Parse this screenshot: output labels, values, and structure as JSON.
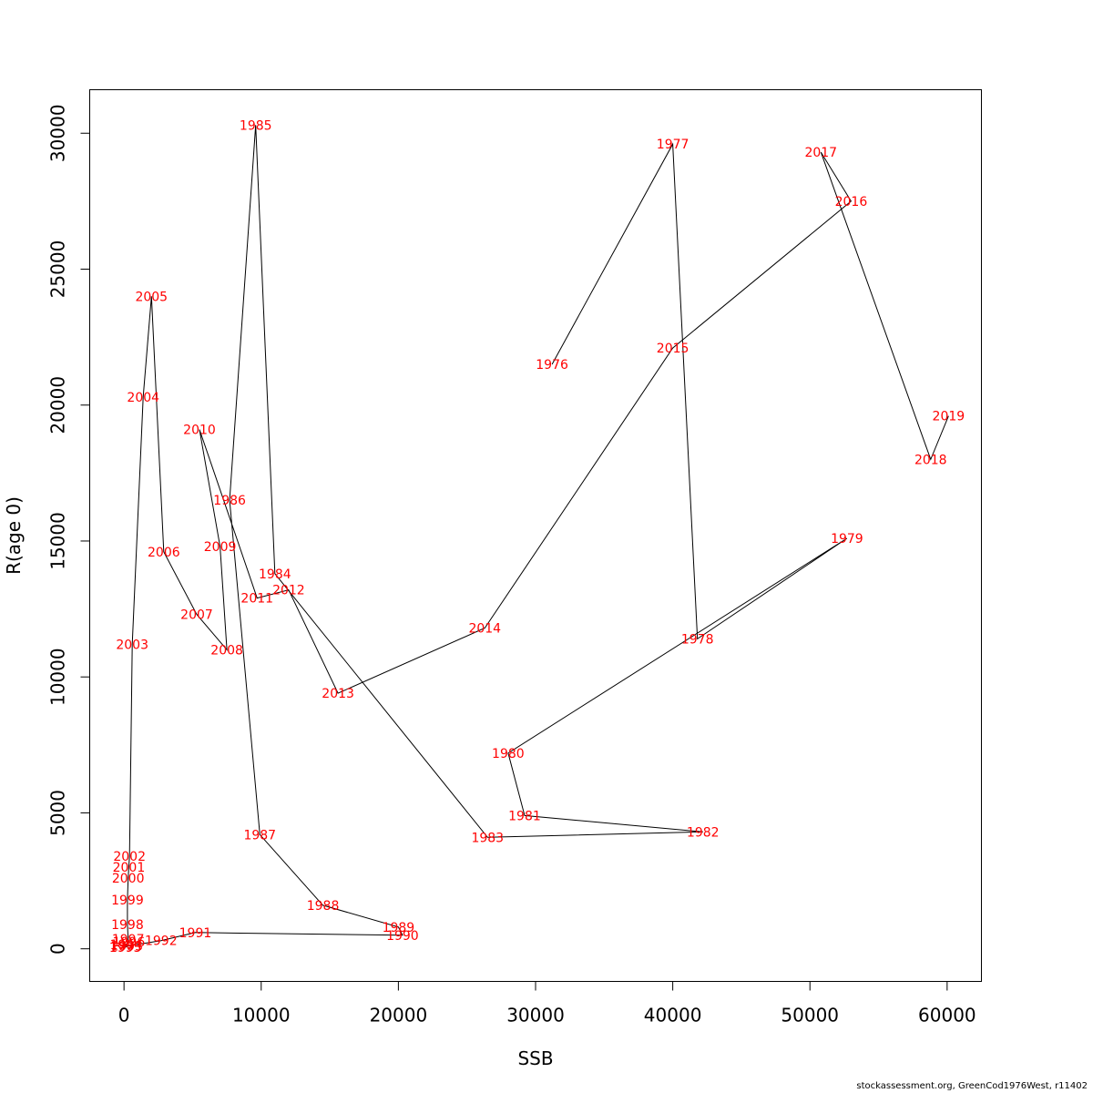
{
  "chart_data": {
    "type": "line",
    "title": "",
    "xlabel": "SSB",
    "ylabel": "R(age 0)",
    "xlim": [
      -2500,
      62500
    ],
    "ylim": [
      -1200,
      31600
    ],
    "xticks": [
      0,
      10000,
      20000,
      30000,
      40000,
      50000,
      60000
    ],
    "xtick_labels": [
      "0",
      "10000",
      "20000",
      "30000",
      "40000",
      "50000",
      "60000"
    ],
    "yticks": [
      0,
      5000,
      10000,
      15000,
      20000,
      25000,
      30000
    ],
    "ytick_labels": [
      "0",
      "5000",
      "10000",
      "15000",
      "20000",
      "25000",
      "30000"
    ],
    "grid": false,
    "line_color": "#000000",
    "label_color": "#ff0000",
    "points": [
      {
        "year": "1976",
        "x": 31200,
        "y": 21500
      },
      {
        "year": "1977",
        "x": 40000,
        "y": 29600
      },
      {
        "year": "1978",
        "x": 41800,
        "y": 11400
      },
      {
        "year": "1979",
        "x": 52700,
        "y": 15100
      },
      {
        "year": "1980",
        "x": 28000,
        "y": 7200
      },
      {
        "year": "1981",
        "x": 29200,
        "y": 4900
      },
      {
        "year": "1982",
        "x": 42200,
        "y": 4300
      },
      {
        "year": "1983",
        "x": 26500,
        "y": 4100
      },
      {
        "year": "1984",
        "x": 11000,
        "y": 13800
      },
      {
        "year": "1985",
        "x": 9600,
        "y": 30300
      },
      {
        "year": "1986",
        "x": 7700,
        "y": 16500
      },
      {
        "year": "1987",
        "x": 9900,
        "y": 4200
      },
      {
        "year": "1988",
        "x": 14500,
        "y": 1600
      },
      {
        "year": "1989",
        "x": 20000,
        "y": 800
      },
      {
        "year": "1990",
        "x": 20300,
        "y": 500
      },
      {
        "year": "1991",
        "x": 5200,
        "y": 600
      },
      {
        "year": "1992",
        "x": 2700,
        "y": 300
      },
      {
        "year": "1993",
        "x": 200,
        "y": 100
      },
      {
        "year": "1994",
        "x": 150,
        "y": 150
      },
      {
        "year": "1995",
        "x": 100,
        "y": 50
      },
      {
        "year": "1996",
        "x": 350,
        "y": 250
      },
      {
        "year": "1997",
        "x": 300,
        "y": 350
      },
      {
        "year": "1998",
        "x": 250,
        "y": 900
      },
      {
        "year": "1999",
        "x": 250,
        "y": 1800
      },
      {
        "year": "2000",
        "x": 300,
        "y": 2600
      },
      {
        "year": "2001",
        "x": 350,
        "y": 3000
      },
      {
        "year": "2002",
        "x": 400,
        "y": 3400
      },
      {
        "year": "2003",
        "x": 600,
        "y": 11200
      },
      {
        "year": "2004",
        "x": 1400,
        "y": 20300
      },
      {
        "year": "2005",
        "x": 2000,
        "y": 24000
      },
      {
        "year": "2006",
        "x": 2900,
        "y": 14600
      },
      {
        "year": "2007",
        "x": 5300,
        "y": 12300
      },
      {
        "year": "2008",
        "x": 7500,
        "y": 11000
      },
      {
        "year": "2009",
        "x": 7000,
        "y": 14800
      },
      {
        "year": "2010",
        "x": 5500,
        "y": 19100
      },
      {
        "year": "2011",
        "x": 9700,
        "y": 12900
      },
      {
        "year": "2012",
        "x": 12000,
        "y": 13200
      },
      {
        "year": "2013",
        "x": 15600,
        "y": 9400
      },
      {
        "year": "2014",
        "x": 26300,
        "y": 11800
      },
      {
        "year": "2015",
        "x": 40000,
        "y": 22100
      },
      {
        "year": "2016",
        "x": 53000,
        "y": 27500
      },
      {
        "year": "2017",
        "x": 50800,
        "y": 29300
      },
      {
        "year": "2018",
        "x": 58800,
        "y": 18000
      },
      {
        "year": "2019",
        "x": 60100,
        "y": 19600
      }
    ]
  },
  "footer": {
    "caption": "stockassessment.org, GreenCod1976West, r11402"
  }
}
